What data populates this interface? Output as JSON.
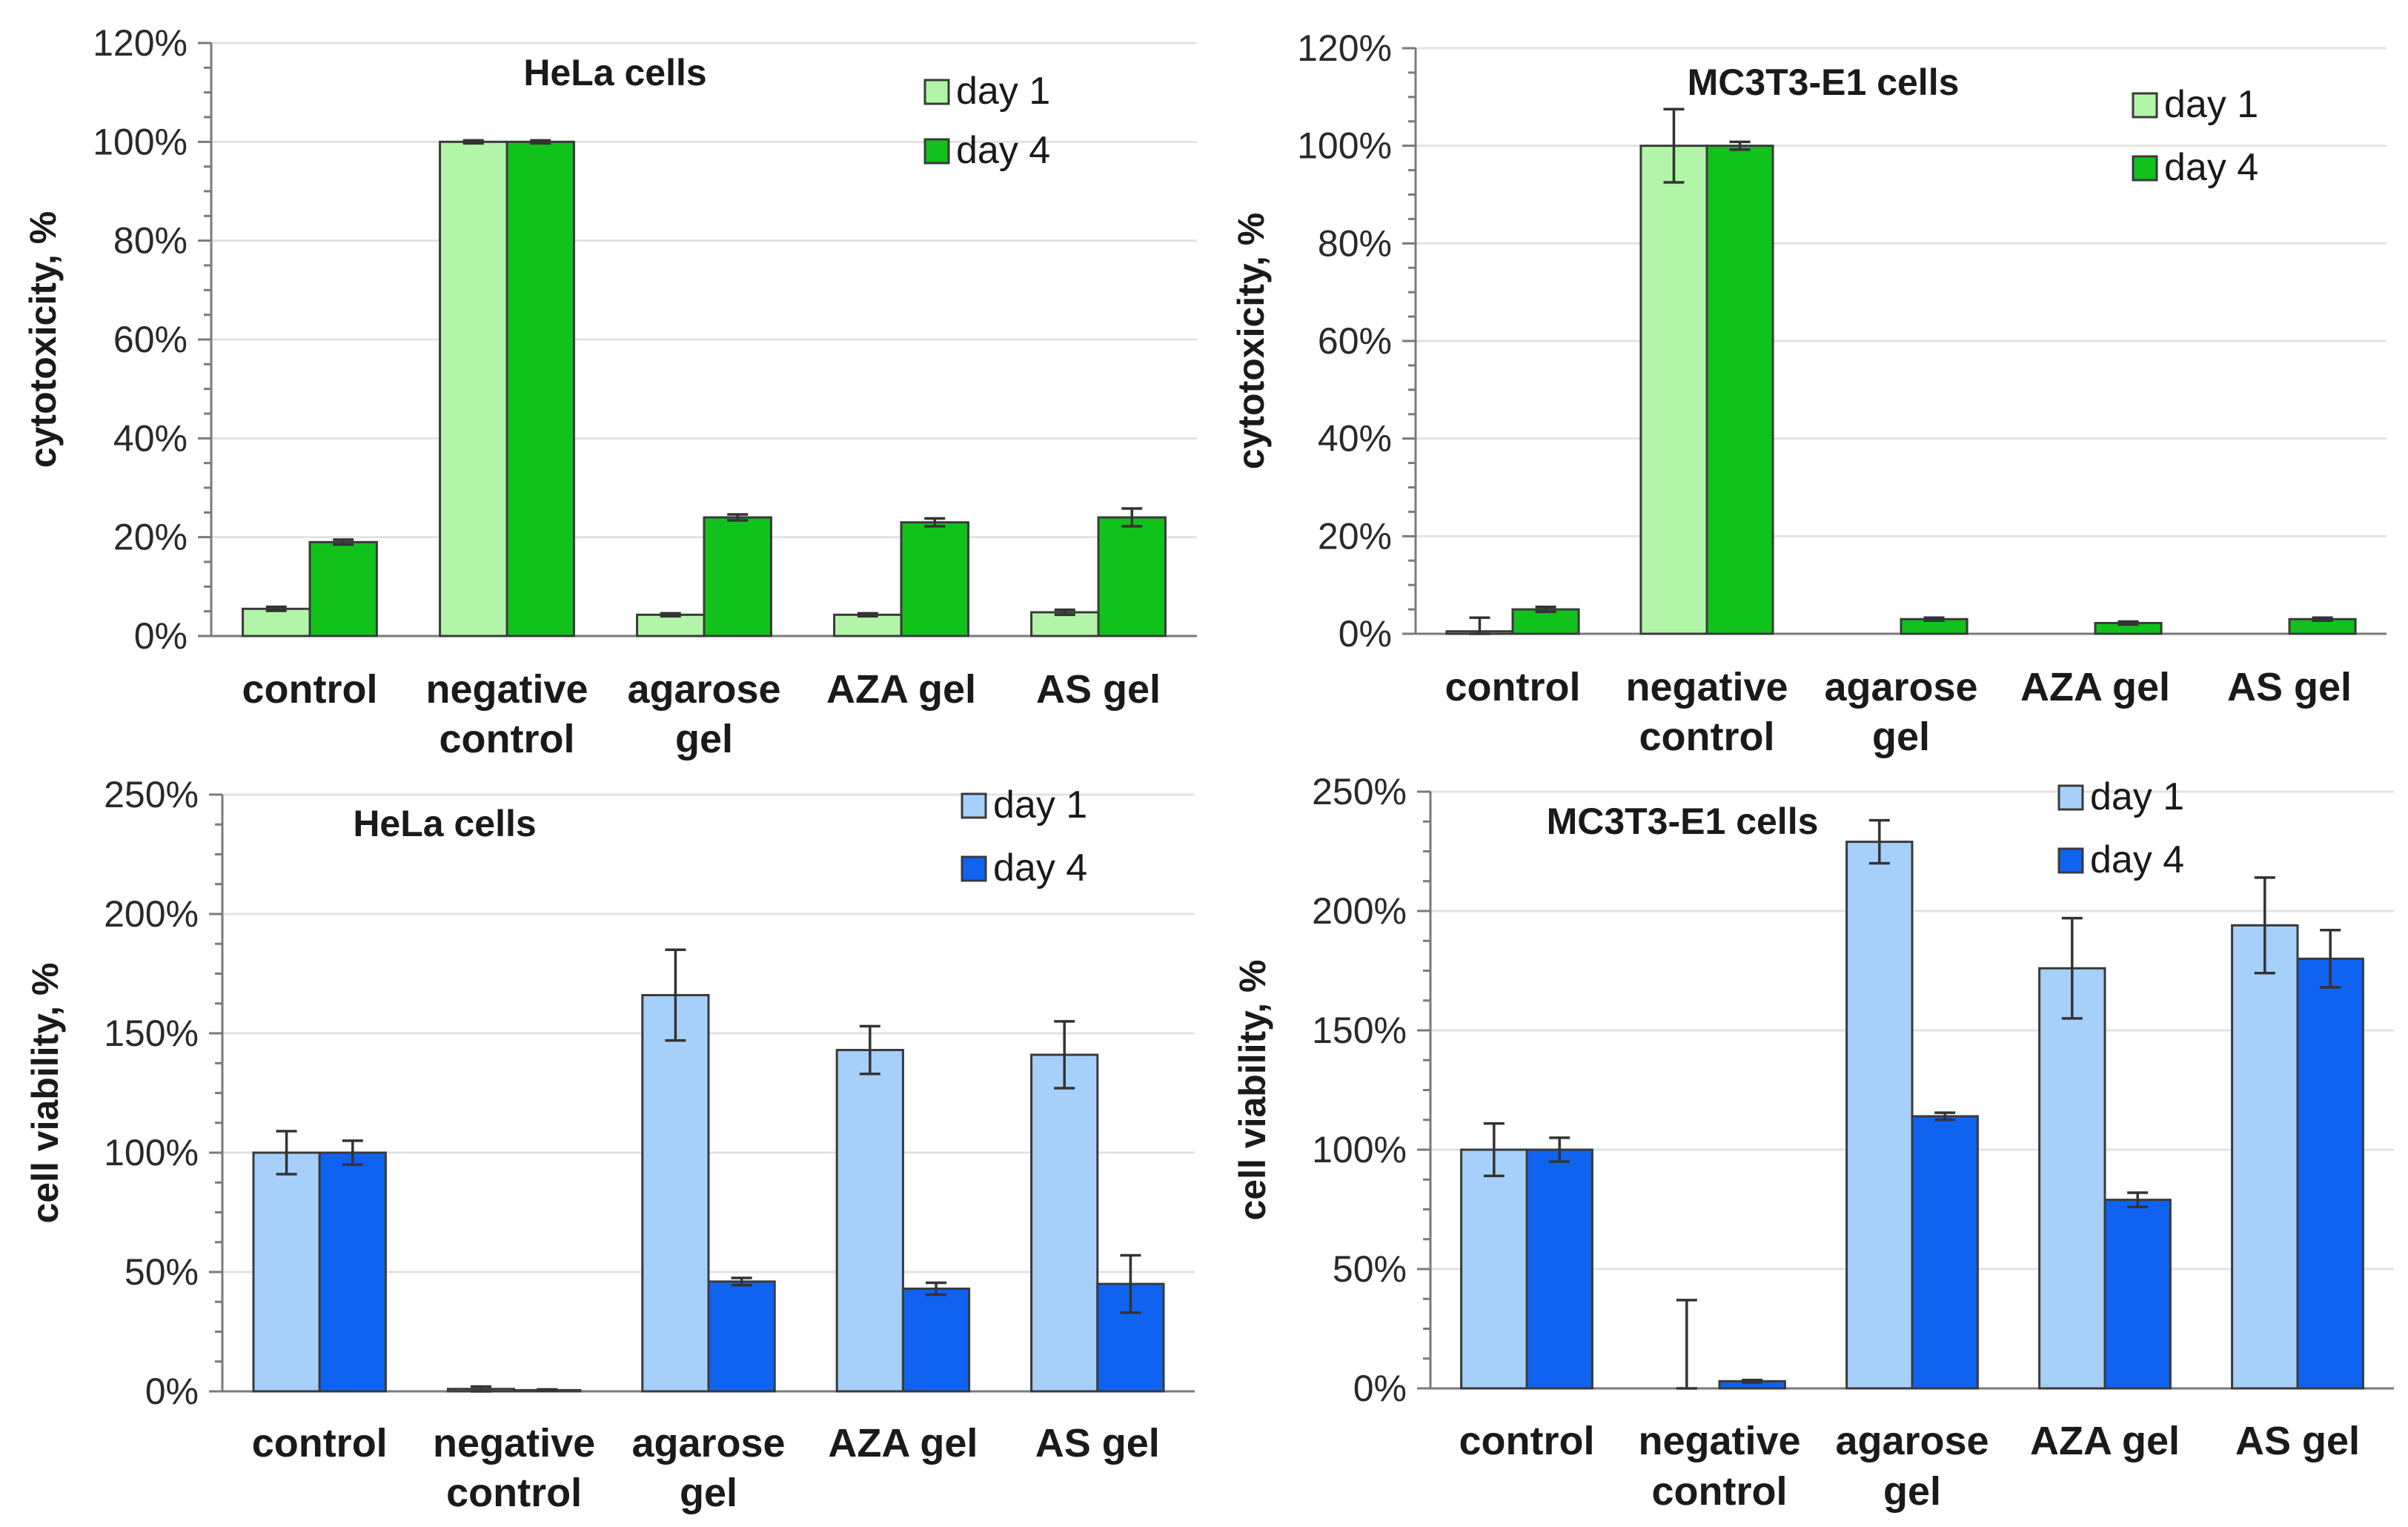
{
  "chart_data": [
    {
      "type": "bar",
      "title": "HeLa cells",
      "xlabel": "",
      "ylabel": "cytotoxicity, %",
      "ylim": [
        0,
        120
      ],
      "ytick_step": 20,
      "ytick_labels": [
        "0%",
        "20%",
        "40%",
        "60%",
        "80%",
        "100%",
        "120%"
      ],
      "minor_ticks": true,
      "legend": "top-right",
      "categories": [
        "control",
        "negative control",
        "agarose gel",
        "AZA gel",
        "AS gel"
      ],
      "category_lines": [
        [
          "control"
        ],
        [
          "negative",
          "control"
        ],
        [
          "agarose",
          "gel"
        ],
        [
          "AZA gel"
        ],
        [
          "AS gel"
        ]
      ],
      "series": [
        {
          "name": "day 1",
          "color": "#b3f5a8",
          "values": [
            5.5,
            100,
            4.3,
            4.3,
            4.8
          ],
          "errors": [
            0.4,
            0.3,
            0.3,
            0.3,
            0.5
          ]
        },
        {
          "name": "day 4",
          "color": "#10c21b",
          "values": [
            19,
            100,
            24,
            23,
            24
          ],
          "errors": [
            0.5,
            0.3,
            0.6,
            0.8,
            1.8
          ]
        }
      ]
    },
    {
      "type": "bar",
      "title": "MC3T3-E1 cells",
      "xlabel": "",
      "ylabel": "cytotoxicity, %",
      "ylim": [
        0,
        120
      ],
      "ytick_step": 20,
      "ytick_labels": [
        "0%",
        "20%",
        "40%",
        "60%",
        "80%",
        "100%",
        "120%"
      ],
      "minor_ticks": true,
      "legend": "top-right",
      "categories": [
        "control",
        "negative control",
        "agarose gel",
        "AZA gel",
        "AS gel"
      ],
      "category_lines": [
        [
          "control"
        ],
        [
          "negative",
          "control"
        ],
        [
          "agarose",
          "gel"
        ],
        [
          "AZA gel"
        ],
        [
          "AS gel"
        ]
      ],
      "series": [
        {
          "name": "day 1",
          "color": "#b3f5a8",
          "values": [
            0.5,
            100,
            0,
            0,
            0
          ],
          "errors": [
            2.8,
            7.5,
            0,
            0,
            0
          ]
        },
        {
          "name": "day 4",
          "color": "#10c21b",
          "values": [
            5,
            100,
            3,
            2.2,
            3
          ],
          "errors": [
            0.5,
            0.8,
            0.3,
            0.3,
            0.3
          ]
        }
      ]
    },
    {
      "type": "bar",
      "title": "HeLa cells",
      "xlabel": "",
      "ylabel": "cell viability, %",
      "ylim": [
        0,
        250
      ],
      "ytick_step": 50,
      "ytick_labels": [
        "0%",
        "50%",
        "100%",
        "150%",
        "200%",
        "250%"
      ],
      "minor_ticks": true,
      "legend": "top-right",
      "categories": [
        "control",
        "negative control",
        "agarose gel",
        "AZA gel",
        "AS gel"
      ],
      "category_lines": [
        [
          "control"
        ],
        [
          "negative",
          "control"
        ],
        [
          "agarose",
          "gel"
        ],
        [
          "AZA gel"
        ],
        [
          "AS gel"
        ]
      ],
      "series": [
        {
          "name": "day 1",
          "color": "#a6d0fa",
          "values": [
            100,
            1,
            166,
            143,
            141
          ],
          "errors": [
            9,
            1,
            19,
            10,
            14
          ]
        },
        {
          "name": "day 4",
          "color": "#0f63f0",
          "values": [
            100,
            0.5,
            46,
            43,
            45
          ],
          "errors": [
            5,
            0.3,
            1.5,
            2.5,
            12
          ]
        }
      ]
    },
    {
      "type": "bar",
      "title": "MC3T3-E1 cells",
      "xlabel": "",
      "ylabel": "cell viability, %",
      "ylim": [
        0,
        250
      ],
      "ytick_step": 50,
      "ytick_labels": [
        "0%",
        "50%",
        "100%",
        "150%",
        "200%",
        "250%"
      ],
      "minor_ticks": true,
      "legend": "top-right",
      "categories": [
        "control",
        "negative control",
        "agarose gel",
        "AZA gel",
        "AS gel"
      ],
      "category_lines": [
        [
          "control"
        ],
        [
          "negative",
          "control"
        ],
        [
          "agarose",
          "gel"
        ],
        [
          "AZA gel"
        ],
        [
          "AS gel"
        ]
      ],
      "series": [
        {
          "name": "day 1",
          "color": "#a6d0fa",
          "values": [
            100,
            0,
            229,
            176,
            194
          ],
          "errors": [
            11,
            37,
            9,
            21,
            20
          ]
        },
        {
          "name": "day 4",
          "color": "#0f63f0",
          "values": [
            100,
            3,
            114,
            79,
            180
          ],
          "errors": [
            5,
            0.5,
            1.5,
            3,
            12
          ]
        }
      ]
    }
  ]
}
